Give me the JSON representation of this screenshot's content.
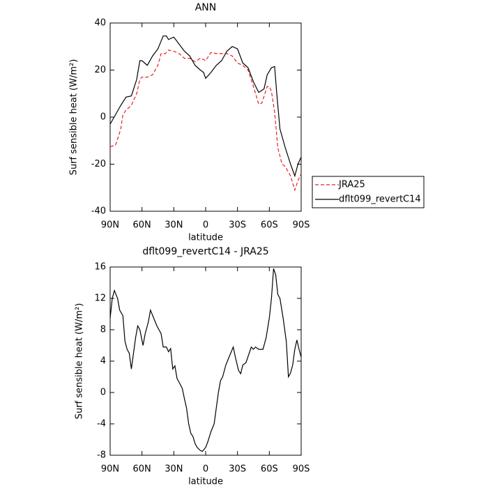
{
  "chart_data": [
    {
      "type": "line",
      "title": "ANN",
      "xlabel": "latitude",
      "ylabel": "Surf sensible heat (W/m²)",
      "xlim": [
        90,
        -90
      ],
      "ylim": [
        -40,
        40
      ],
      "xticks": [
        {
          "value": 90,
          "label": "90N"
        },
        {
          "value": 60,
          "label": "60N"
        },
        {
          "value": 30,
          "label": "30N"
        },
        0,
        {
          "value": -30,
          "label": "30S"
        },
        {
          "value": -60,
          "label": "60S"
        },
        {
          "value": -90,
          "label": "90S"
        }
      ],
      "yticks": [
        -40,
        -20,
        0,
        20,
        40
      ],
      "legend": "outside right",
      "series": [
        {
          "name": "JRA25",
          "color": "#e8201c",
          "dash": true,
          "x": [
            90,
            85,
            82,
            80,
            78,
            75,
            70,
            65,
            62,
            60,
            55,
            50,
            45,
            42,
            38,
            35,
            30,
            25,
            20,
            15,
            10,
            5,
            2,
            0,
            -5,
            -10,
            -15,
            -20,
            -25,
            -30,
            -35,
            -40,
            -45,
            -50,
            -53,
            -58,
            -60,
            -62,
            -65,
            -68,
            -72,
            -75,
            -80,
            -84,
            -87,
            -90
          ],
          "values": [
            -12.5,
            -12,
            -8,
            -5,
            1,
            3,
            5,
            10,
            16,
            17,
            17,
            18,
            22,
            27,
            27,
            28.5,
            28,
            27,
            25,
            25,
            23.5,
            25,
            24.5,
            24,
            27.5,
            27,
            27,
            27,
            26,
            23,
            22,
            20,
            13,
            5.5,
            6,
            13,
            13,
            11,
            2,
            -13,
            -20,
            -21,
            -25,
            -31,
            -27,
            -24
          ]
        },
        {
          "name": "dflt099_revertC14",
          "color": "#000000",
          "dash": false,
          "x": [
            90,
            85,
            80,
            75,
            70,
            65,
            62,
            60,
            55,
            50,
            45,
            40,
            37,
            35,
            30,
            25,
            20,
            15,
            10,
            5,
            2,
            0,
            -5,
            -10,
            -15,
            -20,
            -25,
            -30,
            -35,
            -40,
            -45,
            -50,
            -55,
            -58,
            -62,
            -65,
            -67,
            -70,
            -75,
            -80,
            -84,
            -87,
            -90
          ],
          "values": [
            -3,
            1,
            5,
            8.5,
            9,
            16,
            24,
            24,
            22,
            26,
            29,
            34.5,
            34.5,
            33,
            34,
            31,
            28,
            26,
            22,
            20,
            19,
            16.5,
            19,
            22,
            24,
            28,
            30,
            29,
            23,
            21,
            15,
            10.5,
            12,
            18,
            21,
            21.5,
            10,
            -5,
            -13,
            -20,
            -25,
            -20,
            -17
          ]
        }
      ]
    },
    {
      "type": "line",
      "title": "dflt099_revertC14 - JRA25",
      "xlabel": "latitude",
      "ylabel": "Surf sensible heat (W/m²)",
      "xlim": [
        90,
        -90
      ],
      "ylim": [
        -8,
        16
      ],
      "xticks": [
        {
          "value": 90,
          "label": "90N"
        },
        {
          "value": 60,
          "label": "60N"
        },
        {
          "value": 30,
          "label": "30N"
        },
        0,
        {
          "value": -30,
          "label": "30S"
        },
        {
          "value": -60,
          "label": "60S"
        },
        {
          "value": -90,
          "label": "90S"
        }
      ],
      "yticks": [
        -8,
        -4,
        0,
        4,
        8,
        12,
        16
      ],
      "series": [
        {
          "color": "#000000",
          "dash": false,
          "x": [
            90,
            88,
            86,
            83,
            81,
            78,
            76,
            74,
            72,
            70,
            68,
            66,
            64,
            62,
            59,
            57,
            54,
            52,
            49,
            46,
            42,
            40,
            37,
            35,
            33,
            31,
            29,
            27,
            25,
            22,
            20,
            18,
            16,
            14,
            12,
            10,
            8,
            5,
            3,
            0,
            -2,
            -5,
            -8,
            -10,
            -12,
            -14,
            -16,
            -19,
            -22,
            -26,
            -28,
            -31,
            -33,
            -35,
            -38,
            -41,
            -43,
            -45,
            -47,
            -50,
            -54,
            -57,
            -60,
            -62,
            -64,
            -66,
            -68,
            -70,
            -73,
            -76,
            -78,
            -80,
            -82,
            -84,
            -86,
            -88,
            -90
          ],
          "values": [
            9.5,
            12,
            13,
            12,
            10.5,
            9.8,
            6.5,
            5.5,
            5,
            3,
            5,
            7,
            8.5,
            8,
            6,
            7.5,
            9,
            10.5,
            9.5,
            8.5,
            7.5,
            5.8,
            5.8,
            5.2,
            5.6,
            3,
            3.4,
            1.8,
            1.3,
            0.5,
            -0.8,
            -2,
            -4,
            -5.2,
            -5.6,
            -6.5,
            -7,
            -7.4,
            -7.5,
            -7,
            -6.3,
            -5,
            -4,
            -2,
            0,
            1.5,
            2,
            3.5,
            4.5,
            5.8,
            4.5,
            2.8,
            2.4,
            3.5,
            3.8,
            5,
            5.8,
            5.5,
            5.8,
            5.5,
            5.5,
            7,
            9.5,
            12,
            15.8,
            15,
            12.5,
            12,
            9.5,
            6.5,
            2,
            2.5,
            3.5,
            5.5,
            6.7,
            5.5,
            4.5
          ]
        }
      ]
    }
  ]
}
